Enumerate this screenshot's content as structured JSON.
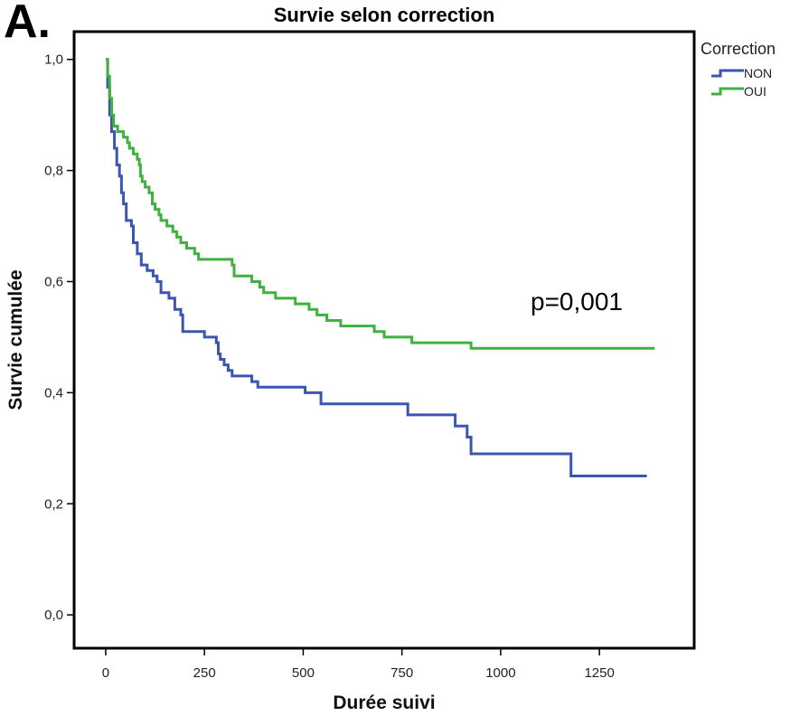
{
  "panel_label": "A.",
  "chart_data": {
    "type": "line",
    "title": "Survie selon correction",
    "xlabel": "Durée suivi",
    "ylabel": "Survie cumulée",
    "xlim": [
      -80,
      1490
    ],
    "ylim": [
      -0.06,
      1.05
    ],
    "x_ticks": [
      0,
      250,
      500,
      750,
      1000,
      1250
    ],
    "x_tick_labels": [
      "0",
      "250",
      "500",
      "750",
      "1000",
      "1250"
    ],
    "y_ticks": [
      0.0,
      0.2,
      0.4,
      0.6,
      0.8,
      1.0
    ],
    "y_tick_labels": [
      "0,0",
      "0,2",
      "0,4",
      "0,6",
      "0,8",
      "1,0"
    ],
    "grid": false,
    "legend_title": "Correction",
    "legend_position": "right-top",
    "annotation": "p=0,001",
    "series": [
      {
        "name": "NON",
        "color": "#3c55b0",
        "step": true,
        "points": [
          [
            0,
            1.0
          ],
          [
            5,
            0.95
          ],
          [
            10,
            0.9
          ],
          [
            15,
            0.87
          ],
          [
            22,
            0.84
          ],
          [
            28,
            0.81
          ],
          [
            35,
            0.79
          ],
          [
            40,
            0.76
          ],
          [
            45,
            0.74
          ],
          [
            52,
            0.71
          ],
          [
            65,
            0.7
          ],
          [
            70,
            0.67
          ],
          [
            80,
            0.65
          ],
          [
            90,
            0.63
          ],
          [
            105,
            0.62
          ],
          [
            120,
            0.61
          ],
          [
            130,
            0.6
          ],
          [
            140,
            0.58
          ],
          [
            160,
            0.57
          ],
          [
            175,
            0.55
          ],
          [
            190,
            0.54
          ],
          [
            195,
            0.51
          ],
          [
            240,
            0.51
          ],
          [
            250,
            0.5
          ],
          [
            280,
            0.49
          ],
          [
            285,
            0.47
          ],
          [
            290,
            0.46
          ],
          [
            300,
            0.45
          ],
          [
            310,
            0.44
          ],
          [
            320,
            0.43
          ],
          [
            370,
            0.42
          ],
          [
            385,
            0.41
          ],
          [
            500,
            0.41
          ],
          [
            505,
            0.4
          ],
          [
            540,
            0.4
          ],
          [
            545,
            0.38
          ],
          [
            760,
            0.38
          ],
          [
            765,
            0.36
          ],
          [
            880,
            0.36
          ],
          [
            885,
            0.34
          ],
          [
            910,
            0.34
          ],
          [
            915,
            0.32
          ],
          [
            925,
            0.29
          ],
          [
            1175,
            0.29
          ],
          [
            1178,
            0.25
          ],
          [
            1370,
            0.25
          ]
        ]
      },
      {
        "name": "OUI",
        "color": "#3fb13f",
        "step": true,
        "points": [
          [
            0,
            1.0
          ],
          [
            5,
            0.97
          ],
          [
            10,
            0.93
          ],
          [
            15,
            0.9
          ],
          [
            20,
            0.88
          ],
          [
            30,
            0.87
          ],
          [
            45,
            0.86
          ],
          [
            55,
            0.85
          ],
          [
            60,
            0.84
          ],
          [
            70,
            0.83
          ],
          [
            80,
            0.82
          ],
          [
            85,
            0.81
          ],
          [
            88,
            0.79
          ],
          [
            92,
            0.78
          ],
          [
            100,
            0.77
          ],
          [
            110,
            0.76
          ],
          [
            118,
            0.74
          ],
          [
            125,
            0.73
          ],
          [
            135,
            0.72
          ],
          [
            140,
            0.71
          ],
          [
            155,
            0.7
          ],
          [
            170,
            0.69
          ],
          [
            180,
            0.68
          ],
          [
            190,
            0.67
          ],
          [
            205,
            0.66
          ],
          [
            225,
            0.65
          ],
          [
            235,
            0.64
          ],
          [
            245,
            0.64
          ],
          [
            320,
            0.63
          ],
          [
            325,
            0.61
          ],
          [
            360,
            0.61
          ],
          [
            370,
            0.6
          ],
          [
            390,
            0.59
          ],
          [
            400,
            0.58
          ],
          [
            420,
            0.58
          ],
          [
            430,
            0.57
          ],
          [
            470,
            0.57
          ],
          [
            480,
            0.56
          ],
          [
            505,
            0.56
          ],
          [
            515,
            0.55
          ],
          [
            535,
            0.54
          ],
          [
            545,
            0.54
          ],
          [
            560,
            0.53
          ],
          [
            590,
            0.53
          ],
          [
            595,
            0.52
          ],
          [
            675,
            0.52
          ],
          [
            680,
            0.51
          ],
          [
            700,
            0.51
          ],
          [
            705,
            0.5
          ],
          [
            710,
            0.5
          ],
          [
            715,
            0.5
          ],
          [
            770,
            0.5
          ],
          [
            775,
            0.49
          ],
          [
            920,
            0.49
          ],
          [
            925,
            0.48
          ],
          [
            1390,
            0.48
          ]
        ]
      }
    ]
  }
}
